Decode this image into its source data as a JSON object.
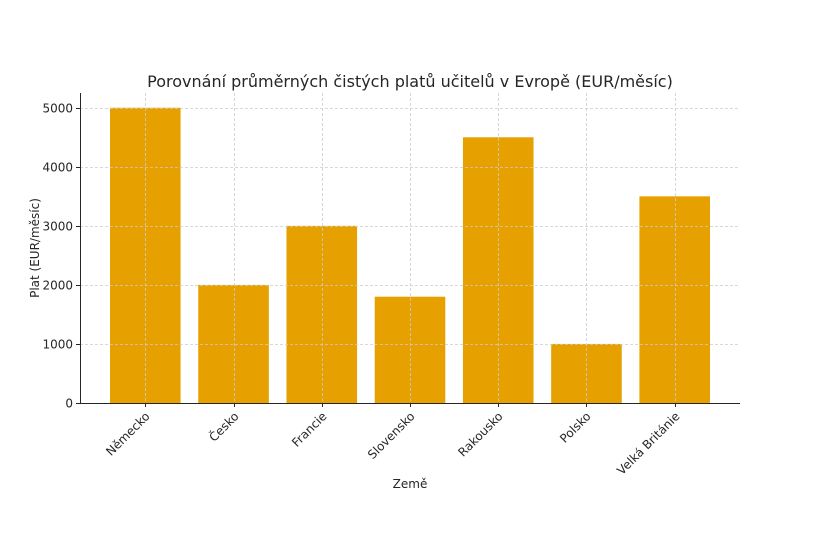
{
  "chart_data": {
    "type": "bar",
    "title": "Porovnání průměrných čistých platů učitelů v Evropě (EUR/měsíc)",
    "xlabel": "Země",
    "ylabel": "Plat (EUR/měsíc)",
    "categories": [
      "Německo",
      "Česko",
      "Francie",
      "Slovensko",
      "Rakousko",
      "Polsko",
      "Velká Británie"
    ],
    "values": [
      5000,
      2000,
      3000,
      1800,
      4500,
      1000,
      3500
    ],
    "ylim": [
      0,
      5250
    ],
    "yticks": [
      0,
      1000,
      2000,
      3000,
      4000,
      5000
    ],
    "grid": true,
    "bar_color": "#E6A100"
  }
}
